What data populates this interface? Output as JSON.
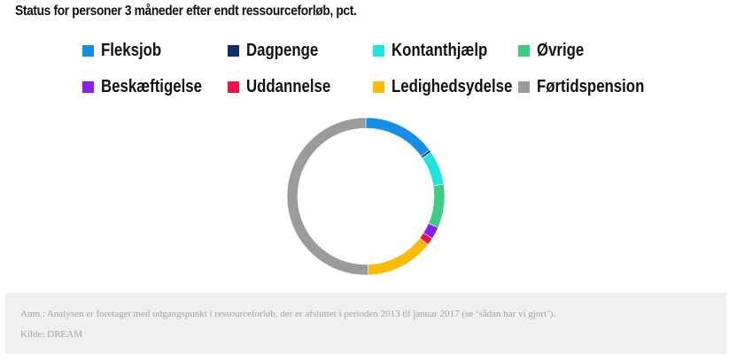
{
  "header": {
    "title": "Status for personer 3 måneder efter endt ressourceforløb, pct."
  },
  "chart_data": {
    "type": "pie",
    "variant": "donut",
    "title": "Status for personer 3 måneder efter endt ressourceforløb, pct.",
    "legend_position": "top",
    "series": [
      {
        "name": "Fleksjob",
        "value": 15,
        "color": "#168ee8"
      },
      {
        "name": "Dagpenge",
        "value": 0.5,
        "color": "#0c2e6e"
      },
      {
        "name": "Kontanthjælp",
        "value": 7,
        "color": "#1ee5e0"
      },
      {
        "name": "Øvrige",
        "value": 9,
        "color": "#3ecc85"
      },
      {
        "name": "Beskæftigelse",
        "value": 2.5,
        "color": "#8b1cf6"
      },
      {
        "name": "Uddannelse",
        "value": 1.5,
        "color": "#f0104a"
      },
      {
        "name": "Ledighedsydelse",
        "value": 14,
        "color": "#fcbc04"
      },
      {
        "name": "Førtidspension",
        "value": 50.5,
        "color": "#9b9b9b"
      }
    ]
  },
  "footer": {
    "note": "Anm.: Analysen er foretaget med udgangspunkt i ressourceforløb, der er afsluttet i perioden 2013 til januar 2017 (se ‘sådan har vi gjort’).",
    "source": "Kilde: DREAM"
  }
}
